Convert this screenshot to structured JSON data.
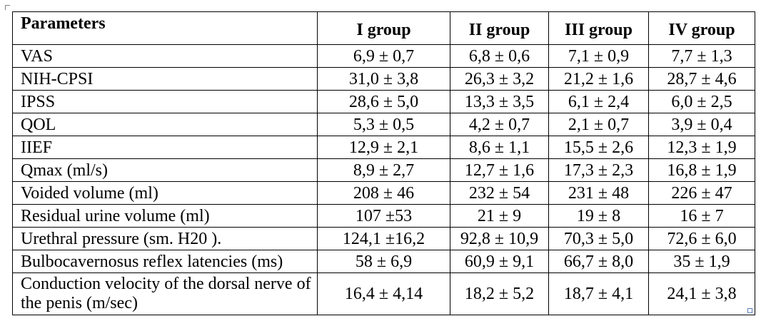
{
  "table": {
    "headers": [
      "Parameters",
      "I group",
      "II group",
      "III group",
      "IV group"
    ],
    "rows": [
      {
        "parameter": "VAS",
        "values": [
          "6,9 ± 0,7",
          "6,8 ± 0,6",
          "7,1 ± 0,9",
          "7,7 ± 1,3"
        ]
      },
      {
        "parameter": "NIH-CPSI",
        "values": [
          "31,0 ± 3,8",
          "26,3 ± 3,2",
          "21,2 ± 1,6",
          "28,7 ± 4,6"
        ]
      },
      {
        "parameter": "IPSS",
        "values": [
          "28,6 ± 5,0",
          "13,3 ± 3,5",
          "6,1 ± 2,4",
          "6,0 ± 2,5"
        ]
      },
      {
        "parameter": "QOL",
        "values": [
          "5,3 ± 0,5",
          "4,2 ± 0,7",
          "2,1 ± 0,7",
          "3,9 ± 0,4"
        ]
      },
      {
        "parameter": "IIEF",
        "values": [
          "12,9 ± 2,1",
          "8,6 ± 1,1",
          "15,5 ± 2,6",
          "12,3 ± 1,9"
        ]
      },
      {
        "parameter": "Qmax (ml/s)",
        "values": [
          "8,9 ± 2,7",
          "12,7 ± 1,6",
          "17,3 ± 2,3",
          "16,8 ± 1,9"
        ]
      },
      {
        "parameter": "Voided volume (ml)",
        "values": [
          "208 ± 46",
          "232 ± 54",
          "231 ± 48",
          "226 ± 47"
        ]
      },
      {
        "parameter": "Residual urine volume (ml)",
        "values": [
          "107 ±53",
          "21 ± 9",
          "19 ± 8",
          "16 ± 7"
        ]
      },
      {
        "parameter": "Urethral pressure (sm. H20 ).",
        "values": [
          "124,1 ±16,2",
          "92,8 ± 10,9",
          "70,3 ± 5,0",
          "72,6 ± 6,0"
        ]
      },
      {
        "parameter": "Bulbocavernosus reflex latencies (ms)",
        "values": [
          "58 ± 6,9",
          "60,9 ± 9,1",
          "66,7 ± 8,0",
          "35 ± 1,9"
        ]
      },
      {
        "parameter": "Conduction velocity of the dorsal nerve of the penis (m/sec)",
        "values": [
          "16,4 ± 4,14",
          "18,2 ± 5,2",
          "18,7 ± 4,1",
          "24,1 ± 3,8"
        ]
      }
    ]
  }
}
